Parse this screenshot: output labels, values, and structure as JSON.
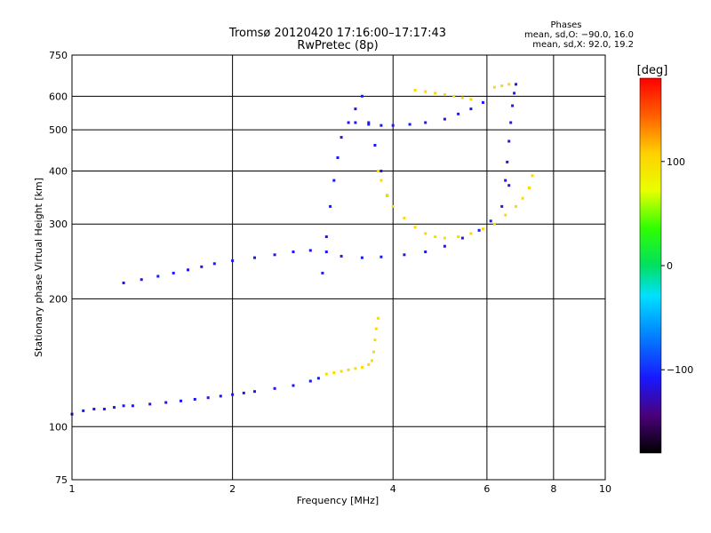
{
  "chart_data": {
    "type": "scatter",
    "title": "Tromsø 20120420 17:16:00–17:17:43",
    "subtitle": "RwPretec (8p)",
    "xlabel": "Frequency [MHz]",
    "ylabel": "Stationary phase Virtual Height [km]",
    "x_scale": "log",
    "y_scale": "log",
    "xlim": [
      1,
      10
    ],
    "ylim": [
      75,
      750
    ],
    "x_ticks": [
      "1",
      "2",
      "4",
      "6",
      "8",
      "10"
    ],
    "x_tick_values": [
      1,
      2,
      4,
      6,
      8,
      10
    ],
    "y_ticks": [
      "75",
      "100",
      "200",
      "300",
      "400",
      "500",
      "600",
      "750"
    ],
    "y_tick_values": [
      75,
      100,
      200,
      300,
      400,
      500,
      600,
      750
    ],
    "grid": true,
    "stats": {
      "header": "Phases",
      "line_o": "mean, sd,O: −90.0, 16.0",
      "line_x": "mean, sd,X:  92.0, 19.2"
    },
    "colorbar": {
      "label": "[deg]",
      "range": [
        -180,
        180
      ],
      "tick_labels": [
        "100",
        "0",
        "−100"
      ],
      "tick_values": [
        100,
        0,
        -100
      ]
    },
    "series": [
      {
        "trace": "lower E/F1 trace",
        "x": [
          1.0,
          1.05,
          1.1,
          1.15,
          1.2,
          1.25,
          1.3,
          1.4,
          1.5,
          1.6,
          1.7,
          1.8,
          1.9,
          2.0,
          2.1,
          2.2,
          2.4,
          2.6,
          2.8,
          2.9
        ],
        "y": [
          107,
          109,
          110,
          110,
          111,
          112,
          112,
          113,
          114,
          115,
          116,
          117,
          118,
          119,
          120,
          121,
          123,
          125,
          128,
          130
        ],
        "phase": -110
      },
      {
        "trace": "lower trace, X-mode",
        "x": [
          3.0,
          3.1,
          3.2,
          3.3,
          3.4,
          3.5,
          3.6,
          3.65,
          3.68,
          3.7,
          3.72,
          3.75
        ],
        "y": [
          133,
          134,
          135,
          136,
          137,
          138,
          140,
          143,
          150,
          160,
          170,
          180
        ],
        "phase": 100
      },
      {
        "trace": "F-region O trace (low)",
        "x": [
          1.25,
          1.35,
          1.45,
          1.55,
          1.65,
          1.75,
          1.85,
          2.0,
          2.2,
          2.4,
          2.6,
          2.8,
          3.0,
          3.2,
          3.5,
          3.8,
          4.2,
          4.6,
          5.0,
          5.4,
          5.8,
          6.1,
          6.4,
          6.6
        ],
        "y": [
          218,
          222,
          226,
          230,
          234,
          238,
          242,
          246,
          250,
          254,
          258,
          260,
          258,
          252,
          250,
          251,
          254,
          258,
          266,
          278,
          290,
          305,
          330,
          370
        ],
        "phase": -110
      },
      {
        "trace": "F-region O trace (upper)",
        "x": [
          6.5,
          6.55,
          6.6,
          6.65,
          6.7,
          6.75,
          6.8
        ],
        "y": [
          380,
          420,
          470,
          520,
          570,
          610,
          640
        ],
        "phase": -110
      },
      {
        "trace": "spread F cluster",
        "x": [
          2.95,
          3.0,
          3.05,
          3.1,
          3.15,
          3.2,
          3.3,
          3.4,
          3.5,
          3.6,
          3.7,
          3.8,
          3.9
        ],
        "y": [
          230,
          280,
          330,
          380,
          430,
          480,
          520,
          560,
          600,
          520,
          460,
          400,
          350
        ],
        "phase": -110
      },
      {
        "trace": "upper oblique trace",
        "x": [
          3.4,
          3.6,
          3.8,
          4.0,
          4.3,
          4.6,
          5.0,
          5.3,
          5.6,
          5.9
        ],
        "y": [
          520,
          515,
          512,
          512,
          515,
          520,
          530,
          545,
          560,
          580
        ],
        "phase": -110
      },
      {
        "trace": "F-region X trace",
        "x": [
          3.75,
          3.8,
          3.9,
          4.0,
          4.2,
          4.4,
          4.6,
          4.8,
          5.0,
          5.3,
          5.6,
          5.9,
          6.2,
          6.5,
          6.8,
          7.0,
          7.2,
          7.3
        ],
        "y": [
          400,
          380,
          350,
          330,
          310,
          295,
          285,
          280,
          278,
          280,
          285,
          292,
          300,
          315,
          330,
          345,
          365,
          390
        ],
        "phase": 100
      },
      {
        "trace": "upper X trace",
        "x": [
          4.4,
          4.6,
          4.8,
          5.0,
          5.2,
          5.4,
          5.6,
          6.2,
          6.4,
          6.6
        ],
        "y": [
          620,
          615,
          610,
          605,
          600,
          595,
          590,
          630,
          635,
          640
        ],
        "phase": 100
      }
    ]
  }
}
